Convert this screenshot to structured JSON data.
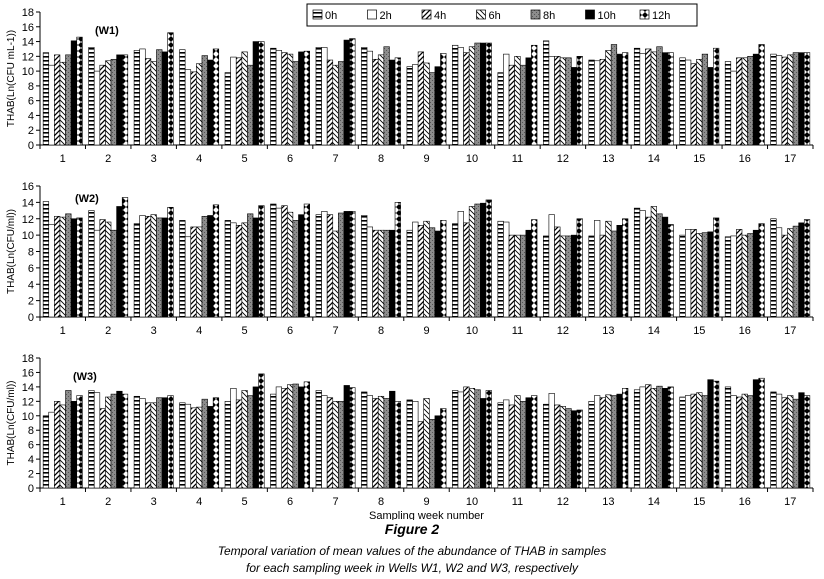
{
  "figure": {
    "number": "Figure 2",
    "caption_line1": "Temporal variation of mean values of the abundance of THAB in samples",
    "caption_line2": "for each sampling week in Wells W1, W2 and W3, respectively"
  },
  "legend": {
    "entries": [
      "0h",
      "2h",
      "4h",
      "6h",
      "8h",
      "10h",
      "12h"
    ],
    "placement": "top-right"
  },
  "chart_data": [
    {
      "type": "bar",
      "title": "(W1)",
      "xlabel": "",
      "ylabel": "THAB(Ln(CFU mL-1))",
      "ylim": [
        0,
        18
      ],
      "yticks": [
        "0",
        "2",
        "4",
        "6",
        "8",
        "10",
        "12",
        "14",
        "16",
        "18"
      ],
      "categories": [
        "1",
        "2",
        "3",
        "4",
        "5",
        "6",
        "7",
        "8",
        "9",
        "10",
        "11",
        "12",
        "13",
        "14",
        "15",
        "16",
        "17"
      ],
      "series": [
        {
          "name": "0h",
          "values": [
            12.5,
            13.2,
            12.8,
            12.9,
            9.8,
            13.1,
            13.2,
            13.2,
            10.6,
            13.5,
            9.8,
            14.1,
            11.5,
            13.1,
            11.8,
            11.3,
            12.3
          ]
        },
        {
          "name": "2h",
          "values": [
            10.8,
            10.0,
            13.0,
            10.2,
            11.9,
            12.8,
            13.2,
            12.7,
            10.9,
            13.2,
            12.3,
            12.0,
            11.4,
            12.4,
            11.5,
            10.0,
            12.1
          ]
        },
        {
          "name": "4h",
          "values": [
            12.2,
            10.8,
            11.7,
            9.9,
            11.8,
            12.5,
            11.5,
            11.6,
            12.6,
            12.5,
            10.8,
            12.0,
            11.6,
            13.0,
            11.0,
            11.8,
            11.9
          ]
        },
        {
          "name": "6h",
          "values": [
            11.2,
            11.4,
            11.3,
            11.0,
            12.6,
            12.3,
            10.8,
            12.2,
            11.1,
            13.3,
            12.0,
            11.8,
            12.8,
            12.6,
            11.6,
            11.8,
            12.2
          ]
        },
        {
          "name": "8h",
          "values": [
            12.2,
            11.6,
            12.9,
            12.1,
            10.8,
            11.3,
            11.3,
            13.3,
            9.8,
            13.8,
            10.8,
            11.8,
            13.6,
            13.3,
            12.3,
            12.0,
            12.5
          ]
        },
        {
          "name": "10h",
          "values": [
            14.1,
            12.2,
            12.6,
            11.5,
            14.0,
            12.6,
            14.2,
            11.5,
            10.6,
            13.8,
            11.8,
            10.5,
            12.3,
            12.5,
            10.5,
            12.3,
            12.5
          ]
        },
        {
          "name": "12h",
          "values": [
            14.6,
            12.2,
            15.2,
            13.0,
            14.0,
            12.7,
            14.4,
            11.8,
            12.4,
            13.8,
            13.5,
            12.0,
            12.5,
            12.5,
            13.1,
            13.6,
            12.5
          ]
        }
      ]
    },
    {
      "type": "bar",
      "title": "(W2)",
      "xlabel": "",
      "ylabel": "THAB(Ln(CFU/ml))",
      "ylim": [
        0,
        16
      ],
      "yticks": [
        "0",
        "2",
        "4",
        "6",
        "8",
        "10",
        "12",
        "14",
        "16"
      ],
      "categories": [
        "1",
        "2",
        "3",
        "4",
        "5",
        "6",
        "7",
        "8",
        "9",
        "10",
        "11",
        "12",
        "13",
        "14",
        "15",
        "16",
        "17"
      ],
      "series": [
        {
          "name": "0h",
          "values": [
            14.1,
            13.0,
            11.4,
            11.8,
            11.8,
            13.8,
            12.5,
            12.4,
            10.6,
            11.4,
            11.7,
            9.9,
            9.9,
            13.3,
            10.0,
            9.8,
            12.0
          ]
        },
        {
          "name": "2h",
          "values": [
            11.3,
            10.6,
            12.4,
            9.8,
            11.5,
            13.3,
            12.9,
            11.0,
            11.6,
            12.9,
            11.6,
            12.5,
            11.8,
            13.0,
            10.7,
            9.9,
            10.9
          ]
        },
        {
          "name": "4h",
          "values": [
            12.3,
            11.9,
            12.3,
            11.0,
            11.2,
            13.6,
            12.5,
            10.6,
            11.2,
            11.5,
            10.0,
            11.0,
            10.0,
            12.2,
            10.7,
            10.7,
            10.0
          ]
        },
        {
          "name": "6h",
          "values": [
            12.2,
            11.6,
            12.5,
            11.0,
            11.5,
            12.8,
            10.5,
            10.6,
            11.7,
            13.5,
            10.0,
            9.9,
            11.7,
            13.5,
            10.2,
            10.0,
            10.8
          ]
        },
        {
          "name": "8h",
          "values": [
            12.6,
            10.6,
            12.1,
            12.3,
            12.6,
            11.8,
            12.7,
            10.6,
            10.9,
            13.8,
            10.0,
            9.9,
            10.5,
            12.6,
            10.3,
            10.2,
            11.1
          ]
        },
        {
          "name": "10h",
          "values": [
            12.0,
            13.5,
            12.1,
            12.4,
            12.1,
            12.5,
            12.9,
            10.6,
            10.5,
            13.9,
            10.6,
            10.0,
            11.2,
            12.2,
            10.4,
            10.6,
            11.5
          ]
        },
        {
          "name": "12h",
          "values": [
            12.1,
            14.6,
            13.4,
            13.7,
            13.6,
            13.8,
            12.9,
            14.0,
            11.8,
            14.3,
            11.9,
            12.0,
            12.0,
            11.3,
            12.1,
            11.4,
            11.9
          ]
        }
      ]
    },
    {
      "type": "bar",
      "title": "(W3)",
      "xlabel": "Sampling week number",
      "ylabel": "THAB(Ln(CFU/ml))",
      "ylim": [
        0,
        18
      ],
      "yticks": [
        "0",
        "2",
        "4",
        "6",
        "8",
        "10",
        "12",
        "14",
        "16",
        "18"
      ],
      "categories": [
        "1",
        "2",
        "3",
        "4",
        "5",
        "6",
        "7",
        "8",
        "9",
        "10",
        "11",
        "12",
        "13",
        "14",
        "15",
        "16",
        "17"
      ],
      "series": [
        {
          "name": "0h",
          "values": [
            10.0,
            13.5,
            12.7,
            11.8,
            12.0,
            13.0,
            13.5,
            13.3,
            12.2,
            13.5,
            11.8,
            11.6,
            12.0,
            13.6,
            12.6,
            14.0,
            13.3
          ]
        },
        {
          "name": "2h",
          "values": [
            10.5,
            13.2,
            12.4,
            11.6,
            13.8,
            14.0,
            12.8,
            12.8,
            12.0,
            13.3,
            12.2,
            13.1,
            12.8,
            14.0,
            12.8,
            12.8,
            13.0
          ]
        },
        {
          "name": "4h",
          "values": [
            12.0,
            11.0,
            11.8,
            11.1,
            12.2,
            13.8,
            12.5,
            12.4,
            9.2,
            14.0,
            11.5,
            11.5,
            12.5,
            14.3,
            13.0,
            12.6,
            12.5
          ]
        },
        {
          "name": "6h",
          "values": [
            11.5,
            12.6,
            11.8,
            11.2,
            13.5,
            14.3,
            12.0,
            12.7,
            12.4,
            13.8,
            12.8,
            11.3,
            12.9,
            13.8,
            13.2,
            13.0,
            12.8
          ]
        },
        {
          "name": "8h",
          "values": [
            13.5,
            13.0,
            12.5,
            12.3,
            12.8,
            14.4,
            12.0,
            12.4,
            9.5,
            13.6,
            12.0,
            11.0,
            12.8,
            14.1,
            12.8,
            12.8,
            12.3
          ]
        },
        {
          "name": "10h",
          "values": [
            12.0,
            13.4,
            12.5,
            11.3,
            14.0,
            14.0,
            14.2,
            13.4,
            10.0,
            12.4,
            12.5,
            10.7,
            13.0,
            13.8,
            15.0,
            15.0,
            13.2
          ]
        },
        {
          "name": "12h",
          "values": [
            12.8,
            13.0,
            12.8,
            12.5,
            15.8,
            14.7,
            13.9,
            12.0,
            11.0,
            13.5,
            12.8,
            10.8,
            13.8,
            14.0,
            14.8,
            15.2,
            12.8
          ]
        }
      ]
    }
  ]
}
